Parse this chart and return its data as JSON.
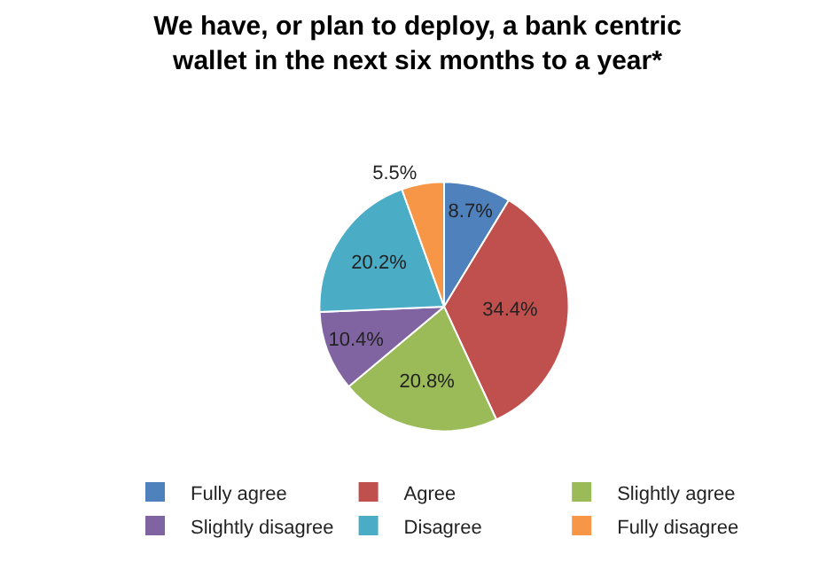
{
  "chart_data": {
    "type": "pie",
    "title": "We have, or plan to deploy, a bank centric wallet in the next six months to a year*",
    "categories": [
      "Fully agree",
      "Agree",
      "Slightly agree",
      "Slightly disagree",
      "Disagree",
      "Fully disagree"
    ],
    "values": [
      8.7,
      34.4,
      20.8,
      10.4,
      20.2,
      5.5
    ],
    "colors": [
      "#4f81bd",
      "#c0504d",
      "#9bbb59",
      "#8064a2",
      "#4bacc6",
      "#f79646"
    ],
    "value_labels": [
      "8.7%",
      "34.4%",
      "20.8%",
      "10.4%",
      "20.2%",
      "5.5%"
    ],
    "legend": "bottom"
  }
}
